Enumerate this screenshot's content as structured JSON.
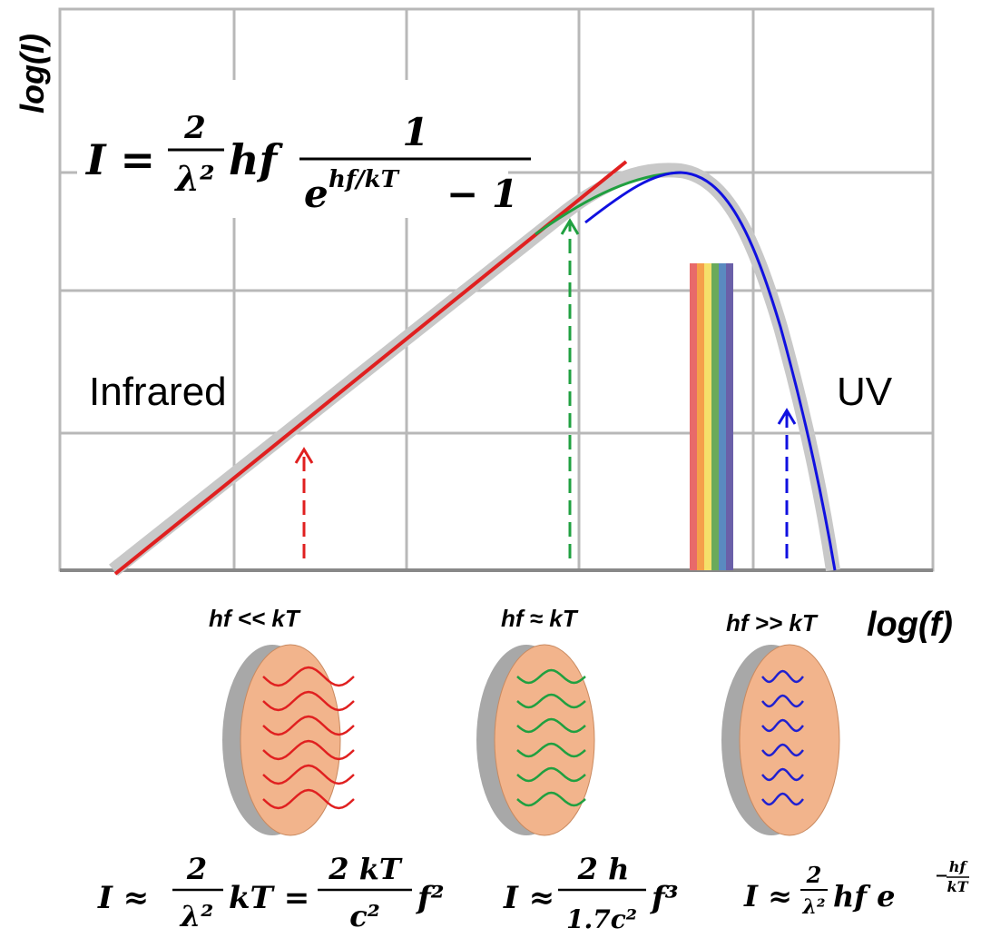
{
  "axes": {
    "y_label": "log(I)",
    "x_label": "log(f)"
  },
  "regions": {
    "left": "Infrared",
    "right": "UV"
  },
  "main_formula": {
    "lhs": "I =",
    "coef_num": "2",
    "coef_den": "λ²",
    "factor": "hf",
    "frac_num": "1",
    "frac_den_base": "e",
    "frac_den_exp": "hf/kT",
    "frac_den_tail": "− 1"
  },
  "regimes": [
    {
      "label": "hf << kT",
      "formula": {
        "lhs": "I ≈",
        "num": "2",
        "den": "λ²",
        "mid": "kT =",
        "num2": "2 kT",
        "den2": "c²",
        "tail": "f²"
      }
    },
    {
      "label": "hf ≈ kT",
      "formula": {
        "lhs": "I ≈",
        "num": "2 h",
        "den": "1.7c²",
        "tail": "f³"
      }
    },
    {
      "label": "hf >> kT",
      "formula": {
        "lhs": "I ≈",
        "num": "2",
        "den": "λ²",
        "mid": "hf e",
        "exp_sign": "−",
        "exp_num": "hf",
        "exp_den": "kT"
      }
    }
  ]
}
